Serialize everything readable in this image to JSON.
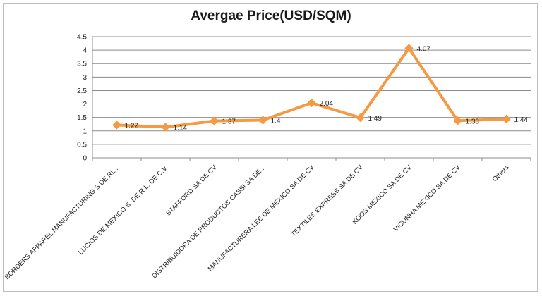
{
  "chart_data": {
    "type": "line",
    "title": "Avergae Price(USD/SQM)",
    "categories": [
      "BORDERS APPAREL MANUFACTURING  S DE RL...",
      "LUCIOS DE MEXICO S. DE R.L. DE C.V.",
      "STAFFORD SA DE CV",
      "DISTRIBUIDORA DE PRODUCTOS CASSI SA DE...",
      "MANUFACTURERA  LEE DE MEXICO SA DE CV",
      "TEXTILES EXPRESS SA DE CV",
      "KOOS MEXICO SA DE CV",
      "VICUNHA MEXICO SA DE CV",
      "Others"
    ],
    "values": [
      1.22,
      1.14,
      1.37,
      1.4,
      2.04,
      1.49,
      4.07,
      1.38,
      1.44
    ],
    "data_labels": [
      "1.22",
      "1.14",
      "1.37",
      "1.4",
      "2.04",
      "1.49",
      "4.07",
      "1.38",
      "1.44"
    ],
    "ylim": [
      0,
      4.5
    ],
    "yticks": [
      0,
      0.5,
      1,
      1.5,
      2,
      2.5,
      3,
      3.5,
      4,
      4.5
    ],
    "ytick_labels": [
      "0",
      "0.5",
      "1",
      "1.5",
      "2",
      "2.5",
      "3",
      "3.5",
      "4",
      "4.5"
    ],
    "grid": true,
    "legend": "none",
    "colors": {
      "line": "#F59A43",
      "grid": "#8c8c8c",
      "axis": "#8c8c8c"
    }
  }
}
